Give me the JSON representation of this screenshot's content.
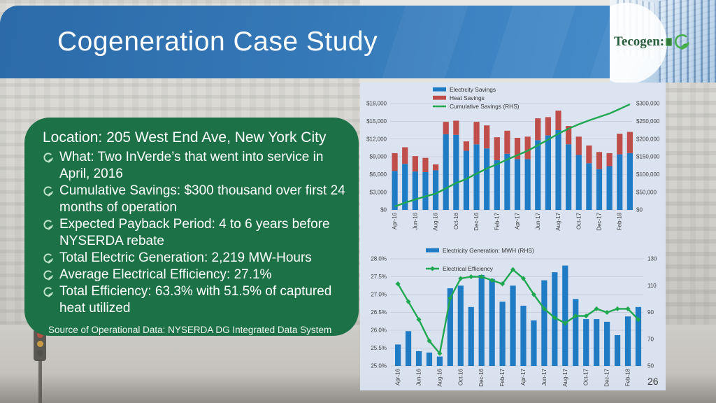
{
  "slide": {
    "title": "Cogeneration Case Study",
    "page_number": "26",
    "logo_text": "Tecogen:"
  },
  "icons": {
    "logo": "leaf-swoosh-icon",
    "bullet": "leaf-swoosh-icon"
  },
  "colors": {
    "header_blue": "#3177b8",
    "box_green": "#1d7147",
    "bar_blue": "#1f7cc4",
    "bar_red": "#bf4d49",
    "line_green": "#1fa850",
    "panel_bg": "#dbe3f2"
  },
  "info_box": {
    "heading": "Location: 205 West End Ave, New York City",
    "bullets": [
      "What: Two InVerde’s that went into service in April, 2016",
      "Cumulative Savings: $300 thousand over first 24 months of operation",
      "Expected Payback Period: 4 to 6 years before NYSERDA rebate",
      "Total Electric Generation: 2,219 MW-Hours",
      "Average Electrical Efficiency: 27.1%",
      "Total Efficiency: 63.3% with 51.5% of captured heat utilized"
    ],
    "source": "Source of Operational Data: NYSERDA DG Integrated Data System"
  },
  "chart_data": [
    {
      "type": "bar",
      "subtype": "stacked-bars-with-line",
      "title": "",
      "legend_position": "top",
      "grid": true,
      "categories": [
        "Apr-16",
        "May-16",
        "Jun-16",
        "Jul-16",
        "Aug-16",
        "Sep-16",
        "Oct-16",
        "Nov-16",
        "Dec-16",
        "Jan-17",
        "Feb-17",
        "Mar-17",
        "Apr-17",
        "May-17",
        "Jun-17",
        "Jul-17",
        "Aug-17",
        "Sep-17",
        "Oct-17",
        "Nov-17",
        "Dec-17",
        "Jan-18",
        "Feb-18",
        "Mar-18"
      ],
      "left_axis": {
        "min": 0,
        "max": 18000,
        "ticks": [
          "$18,000",
          "$15,000",
          "$12,000",
          "$9,000",
          "$6,000",
          "$3,000",
          "$0"
        ]
      },
      "right_axis": {
        "min": 0,
        "max": 300000,
        "ticks": [
          "$300,000",
          "$250,000",
          "$200,000",
          "$150,000",
          "$100,000",
          "$50,000",
          "$0"
        ]
      },
      "series": [
        {
          "name": "Electrcity Savings",
          "type": "bar",
          "stack": true,
          "axis": "left",
          "color": "#1f7cc4",
          "values": [
            6600,
            7800,
            6500,
            6400,
            6700,
            12800,
            12700,
            10000,
            11100,
            10400,
            8400,
            9500,
            8600,
            8600,
            11800,
            12600,
            13500,
            11100,
            9300,
            7900,
            6900,
            7400,
            9400,
            9600
          ]
        },
        {
          "name": "Heat Savings",
          "type": "bar",
          "stack": true,
          "axis": "left",
          "color": "#bf4d49",
          "values": [
            3000,
            2800,
            2600,
            2400,
            1000,
            2100,
            2400,
            1600,
            3800,
            3900,
            3900,
            3900,
            3600,
            3800,
            3700,
            3100,
            3300,
            3100,
            3100,
            3000,
            2900,
            2200,
            3500,
            3600
          ]
        },
        {
          "name": "Cumulative Savings (RHS)",
          "type": "line",
          "axis": "right",
          "color": "#1fa850",
          "values": [
            9600,
            20200,
            29300,
            38100,
            45800,
            60700,
            75800,
            87400,
            102300,
            116600,
            128900,
            142300,
            154500,
            166900,
            182400,
            198100,
            214900,
            229100,
            241500,
            252400,
            262200,
            271800,
            284700,
            297900
          ]
        }
      ]
    },
    {
      "type": "bar",
      "subtype": "bars-with-marker-line",
      "title": "",
      "legend_position": "top",
      "grid": true,
      "categories": [
        "Apr-16",
        "May-16",
        "Jun-16",
        "Jul-16",
        "Aug-16",
        "Sep-16",
        "Oct-16",
        "Nov-16",
        "Dec-16",
        "Jan-17",
        "Feb-17",
        "Mar-17",
        "Apr-17",
        "May-17",
        "Jun-17",
        "Jul-17",
        "Aug-17",
        "Sep-17",
        "Oct-17",
        "Nov-17",
        "Dec-17",
        "Jan-18",
        "Feb-18",
        "Mar-18"
      ],
      "left_axis": {
        "min": 25.0,
        "max": 28.0,
        "ticks": [
          "28.0%",
          "27.5%",
          "27.0%",
          "26.5%",
          "26.0%",
          "25.5%",
          "25.0%"
        ]
      },
      "right_axis": {
        "min": 50,
        "max": 130,
        "ticks": [
          "130",
          "110",
          "90",
          "70",
          "50"
        ]
      },
      "series": [
        {
          "name": "Electricity Generation: MWH (RHS)",
          "type": "bar",
          "stack": false,
          "axis": "right",
          "color": "#1f7cc4",
          "values": [
            66,
            76,
            61,
            60,
            57,
            108,
            110,
            94,
            118,
            115,
            98,
            110,
            95,
            84,
            114,
            120,
            125,
            100,
            85,
            85,
            83,
            73,
            87,
            94
          ]
        },
        {
          "name": "Electrical Efficiency",
          "type": "line",
          "axis": "left",
          "color": "#1fa850",
          "marker": "diamond",
          "values": [
            27.3,
            26.8,
            26.3,
            25.7,
            25.35,
            26.9,
            27.45,
            27.5,
            27.5,
            27.4,
            27.3,
            27.7,
            27.45,
            27.0,
            26.6,
            26.35,
            26.2,
            26.4,
            26.4,
            26.6,
            26.5,
            26.6,
            26.6,
            26.3
          ]
        }
      ]
    }
  ]
}
